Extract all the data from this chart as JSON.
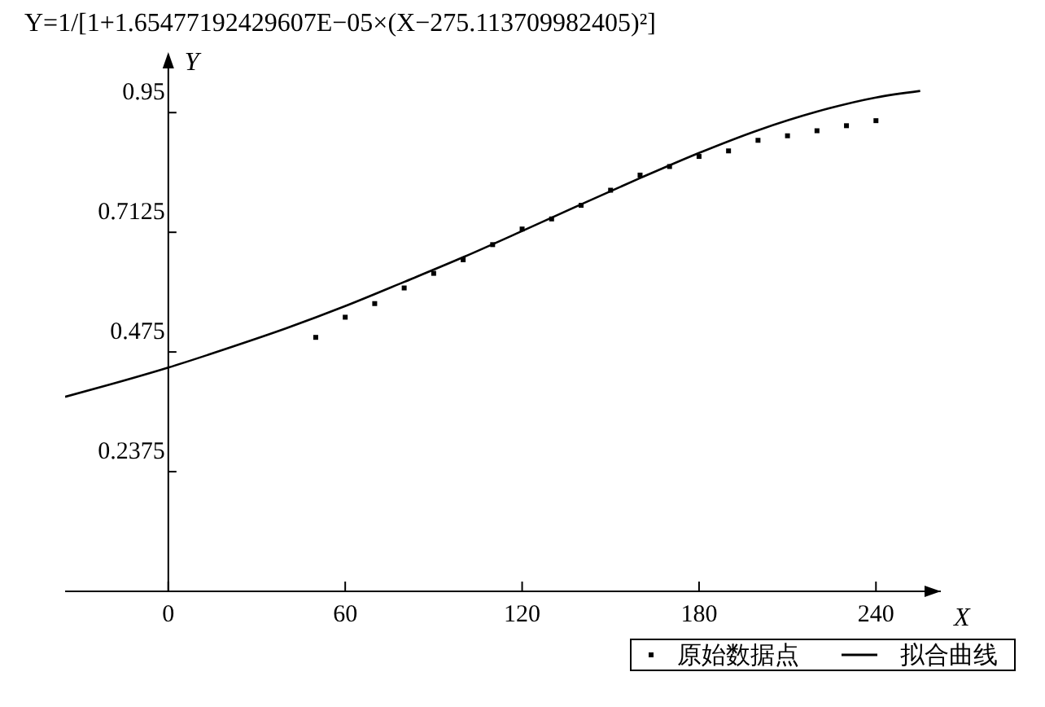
{
  "chart_data": {
    "type": "scatter",
    "title": "Y=1/[1+1.65477192429607E−05×(X−275.113709982405)²]",
    "xlabel": "X",
    "ylabel": "Y",
    "xlim": [
      -35,
      262
    ],
    "ylim": [
      0,
      1.07
    ],
    "xticks": [
      0,
      60,
      120,
      180,
      240
    ],
    "yticks": [
      0.2375,
      0.475,
      0.7125,
      0.95
    ],
    "grid": false,
    "legend": "bottom right",
    "series": [
      {
        "name": "原始数据点",
        "marker": "square",
        "color": "#000000",
        "x": [
          50,
          60,
          70,
          80,
          90,
          100,
          110,
          120,
          130,
          140,
          150,
          160,
          170,
          180,
          190,
          200,
          210,
          220,
          230,
          240
        ],
        "values": [
          0.504,
          0.544,
          0.571,
          0.602,
          0.631,
          0.658,
          0.688,
          0.719,
          0.739,
          0.766,
          0.796,
          0.826,
          0.843,
          0.863,
          0.874,
          0.895,
          0.904,
          0.914,
          0.924,
          0.934
        ]
      },
      {
        "name": "拟合曲线",
        "type": "line",
        "color": "#000000",
        "line_style": "solid",
        "x": [
          -35,
          -20,
          0,
          20,
          40,
          60,
          80,
          100,
          120,
          140,
          160,
          180,
          200,
          220,
          240,
          255
        ],
        "values": [
          0.386,
          0.41,
          0.444,
          0.482,
          0.522,
          0.566,
          0.614,
          0.663,
          0.715,
          0.768,
          0.82,
          0.87,
          0.915,
          0.952,
          0.98,
          0.993
        ]
      }
    ]
  }
}
